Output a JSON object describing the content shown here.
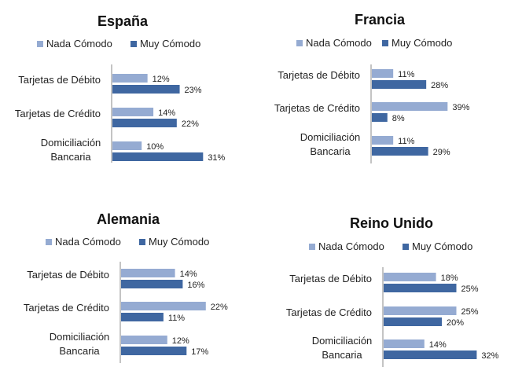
{
  "chart_data": [
    {
      "type": "bar",
      "orientation": "horizontal",
      "title": "España",
      "categories": [
        "Tarjetas de Débito",
        "Tarjetas de Crédito",
        "Domiciliación Bancaria"
      ],
      "series": [
        {
          "name": "Nada Cómodo",
          "color": "#95abd2",
          "values": [
            12,
            14,
            10
          ]
        },
        {
          "name": "Muy Cómodo",
          "color": "#3f67a1",
          "values": [
            23,
            22,
            31
          ]
        }
      ],
      "value_suffix": "%",
      "xlim": [
        0,
        35
      ],
      "legend": "top",
      "grid": false
    },
    {
      "type": "bar",
      "orientation": "horizontal",
      "title": "Francia",
      "categories": [
        "Tarjetas de Débito",
        "Tarjetas de Crédito",
        "Domiciliación Bancaria"
      ],
      "series": [
        {
          "name": "Nada Cómodo",
          "color": "#95abd2",
          "values": [
            11,
            39,
            11
          ]
        },
        {
          "name": "Muy Cómodo",
          "color": "#3f67a1",
          "values": [
            28,
            8,
            29
          ]
        }
      ],
      "value_suffix": "%",
      "xlim": [
        0,
        45
      ],
      "legend": "top",
      "grid": false
    },
    {
      "type": "bar",
      "orientation": "horizontal",
      "title": "Alemania",
      "categories": [
        "Tarjetas de Débito",
        "Tarjetas de Crédito",
        "Domiciliación Bancaria"
      ],
      "series": [
        {
          "name": "Nada Cómodo",
          "color": "#95abd2",
          "values": [
            14,
            22,
            12
          ]
        },
        {
          "name": "Muy Cómodo",
          "color": "#3f67a1",
          "values": [
            16,
            11,
            17
          ]
        }
      ],
      "value_suffix": "%",
      "xlim": [
        0,
        25
      ],
      "legend": "top",
      "grid": false
    },
    {
      "type": "bar",
      "orientation": "horizontal",
      "title": "Reino Unido",
      "categories": [
        "Tarjetas de Débito",
        "Tarjetas de Crédito",
        "Domiciliación Bancaria"
      ],
      "series": [
        {
          "name": "Nada Cómodo",
          "color": "#95abd2",
          "values": [
            18,
            25,
            14
          ]
        },
        {
          "name": "Muy Cómodo",
          "color": "#3f67a1",
          "values": [
            25,
            20,
            32
          ]
        }
      ],
      "value_suffix": "%",
      "xlim": [
        0,
        37
      ],
      "legend": "top",
      "grid": false
    }
  ]
}
